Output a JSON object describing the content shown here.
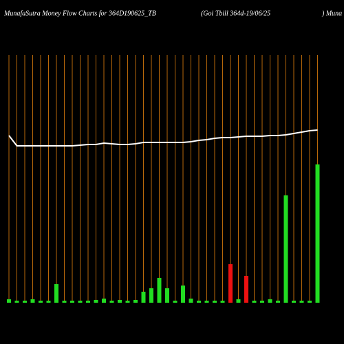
{
  "chart_data": {
    "type": "bar",
    "title": "MunafaSutra  Money Flow  Charts for 364D190625_TB",
    "subtitle": "(Goi   Tbill 364d-19/06/25",
    "site": ") Muna",
    "categories": [
      null,
      null,
      null,
      null,
      null,
      null,
      null,
      null,
      null,
      null,
      null,
      null,
      null,
      null,
      null,
      null,
      null,
      null,
      null,
      null,
      null,
      null,
      null,
      null,
      null,
      null,
      null,
      null,
      null,
      null,
      null,
      null,
      null,
      null,
      null,
      null,
      null,
      null,
      null,
      null
    ],
    "values": [
      5,
      3,
      3,
      5,
      3,
      3,
      27,
      3,
      3,
      3,
      3,
      4,
      6,
      3,
      4,
      3,
      4,
      16,
      21,
      36,
      21,
      3,
      25,
      6,
      3,
      3,
      3,
      3,
      56,
      5,
      39,
      3,
      3,
      5,
      3,
      156,
      3,
      3,
      3,
      201
    ],
    "colors": [
      "#22dd22",
      "#22dd22",
      "#22dd22",
      "#22dd22",
      "#22dd22",
      "#22dd22",
      "#22dd22",
      "#22dd22",
      "#22dd22",
      "#22dd22",
      "#22dd22",
      "#22dd22",
      "#22dd22",
      "#22dd22",
      "#22dd22",
      "#22dd22",
      "#22dd22",
      "#22dd22",
      "#22dd22",
      "#22dd22",
      "#22dd22",
      "#22dd22",
      "#22dd22",
      "#22dd22",
      "#22dd22",
      "#22dd22",
      "#22dd22",
      "#22dd22",
      "#ee1111",
      "#22dd22",
      "#ee1111",
      "#22dd22",
      "#22dd22",
      "#22dd22",
      "#22dd22",
      "#22dd22",
      "#22dd22",
      "#22dd22",
      "#22dd22",
      "#22dd22"
    ],
    "line": {
      "color": "#ffffff",
      "values": [
        243,
        228,
        228,
        228,
        228,
        228,
        228,
        228,
        228,
        229,
        230,
        230,
        232,
        231,
        230,
        230,
        231,
        233,
        233,
        233,
        233,
        233,
        233,
        234,
        236,
        237,
        239,
        240,
        240,
        241,
        242,
        242,
        242,
        243,
        243,
        244,
        246,
        248,
        250,
        251
      ]
    },
    "gridline_color": "#b8680a",
    "ylim": [
      0,
      360
    ]
  }
}
